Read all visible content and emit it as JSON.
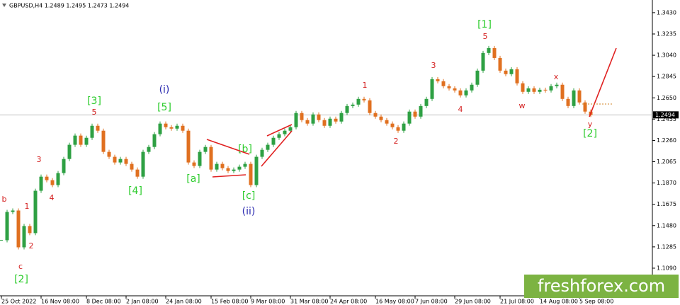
{
  "chart_data": {
    "type": "candlestick",
    "title": "GBPUSD,H4  1.2489 1.2495 1.2473 1.2494",
    "categories": [
      "25 Oct 2022",
      null,
      null,
      null,
      null,
      null,
      null,
      "16 Nov 08:00",
      null,
      null,
      null,
      null,
      null,
      null,
      null,
      "8 Dec 08:00",
      null,
      null,
      null,
      null,
      null,
      null,
      "2 Jan 08:00",
      null,
      null,
      null,
      null,
      null,
      null,
      "24 Jan 08:00",
      null,
      null,
      null,
      null,
      null,
      null,
      null,
      "15 Feb 08:00",
      null,
      null,
      null,
      null,
      null,
      null,
      "9 Mar 08:00",
      null,
      null,
      null,
      null,
      null,
      null,
      "31 Mar 08:00",
      null,
      null,
      null,
      null,
      null,
      null,
      "24 Apr 08:00",
      null,
      null,
      null,
      null,
      null,
      null,
      null,
      "16 May 08:00",
      null,
      null,
      null,
      null,
      null,
      null,
      "7 Jun 08:00",
      null,
      null,
      null,
      null,
      null,
      null,
      "29 Jun 08:00",
      null,
      null,
      null,
      null,
      null,
      null,
      null,
      "21 Jul 08:00",
      null,
      null,
      null,
      null,
      null,
      null,
      "14 Aug 08:00",
      null,
      null,
      null,
      null,
      null,
      null,
      "5 Sep 08:00",
      null,
      null
    ],
    "values": [
      1.1346,
      1.1605,
      1.1618,
      1.1281,
      1.1476,
      1.1411,
      1.1799,
      1.1928,
      1.1896,
      1.1851,
      1.1961,
      1.209,
      1.222,
      1.2304,
      1.222,
      1.2284,
      1.2394,
      1.2349,
      1.2155,
      1.211,
      1.2058,
      1.209,
      1.2045,
      1.1993,
      1.1928,
      1.2155,
      1.22,
      1.2317,
      1.2414,
      1.2381,
      1.2368,
      1.2394,
      1.2349,
      1.2058,
      1.2026,
      1.2155,
      1.22,
      1.1993,
      1.2045,
      1.2006,
      1.198,
      1.1993,
      1.2019,
      1.2045,
      1.1851,
      1.211,
      1.2174,
      1.222,
      1.2284,
      1.2317,
      1.2349,
      1.2381,
      1.2511,
      1.2446,
      1.2414,
      1.2498,
      1.2446,
      1.2394,
      1.2459,
      1.2433,
      1.2511,
      1.2575,
      1.2588,
      1.264,
      1.2627,
      1.2511,
      1.2478,
      1.2446,
      1.2414,
      1.2381,
      1.2349,
      1.2414,
      1.2524,
      1.2478,
      1.2575,
      1.264,
      1.2821,
      1.2802,
      1.2757,
      1.2737,
      1.2718,
      1.2673,
      1.2718,
      1.277,
      1.2899,
      1.3061,
      1.3106,
      1.3015,
      1.2899,
      1.2867,
      1.2912,
      1.2783,
      1.2705,
      1.2737,
      1.2705,
      1.2724,
      1.2718,
      1.2757,
      1.277,
      1.264,
      1.2575,
      1.2718,
      1.2608,
      1.2524,
      1.2494
    ],
    "up_color": "#2ea043",
    "down_color": "#e07020",
    "ylim": [
      1.0837,
      1.3546
    ],
    "yticks": [
      {
        "value": 1.343,
        "label": "1.3430"
      },
      1.3235,
      {
        "value": 1.304,
        "label": "1.3040"
      },
      1.2845,
      {
        "value": 1.265,
        "label": "1.2650"
      },
      1.2455,
      {
        "value": 1.226,
        "label": "1.2260"
      },
      1.2065,
      {
        "value": 1.187,
        "label": "1.1870"
      },
      1.1675,
      {
        "value": 1.148,
        "label": "1.1480"
      },
      1.1285,
      {
        "value": 1.109,
        "label": "1.1090"
      },
      1.0895
    ],
    "last_price": 1.2494,
    "annotations": [
      {
        "text": "b",
        "color": "#d42020"
      },
      {
        "text": "1",
        "color": "#d42020"
      },
      {
        "text": "2",
        "color": "#d42020"
      },
      {
        "text": "c",
        "color": "#d42020"
      },
      {
        "text": "[2]",
        "color": "#2ecc2e"
      },
      {
        "text": "3",
        "color": "#d42020"
      },
      {
        "text": "4",
        "color": "#d42020"
      },
      {
        "text": "5",
        "color": "#d42020"
      },
      {
        "text": "[3]",
        "color": "#2ecc2e"
      },
      {
        "text": "[4]",
        "color": "#2ecc2e"
      },
      {
        "text": "(i)",
        "color": "#2a2ab0"
      },
      {
        "text": "[5]",
        "color": "#2ecc2e"
      },
      {
        "text": "[a]",
        "color": "#2ecc2e"
      },
      {
        "text": "[b]",
        "color": "#2ecc2e"
      },
      {
        "text": "[c]",
        "color": "#2ecc2e"
      },
      {
        "text": "(ii)",
        "color": "#2a2ab0"
      },
      {
        "text": "1",
        "color": "#d42020"
      },
      {
        "text": "2",
        "color": "#d42020"
      },
      {
        "text": "3",
        "color": "#d42020"
      },
      {
        "text": "4",
        "color": "#d42020"
      },
      {
        "text": "[1]",
        "color": "#2ecc2e"
      },
      {
        "text": "5",
        "color": "#d42020"
      },
      {
        "text": "w",
        "color": "#d42020"
      },
      {
        "text": "x",
        "color": "#d42020"
      },
      {
        "text": "y",
        "color": "#d42020"
      },
      {
        "text": "[2]",
        "color": "#2ecc2e"
      }
    ],
    "watermark": "freshforex.com"
  }
}
